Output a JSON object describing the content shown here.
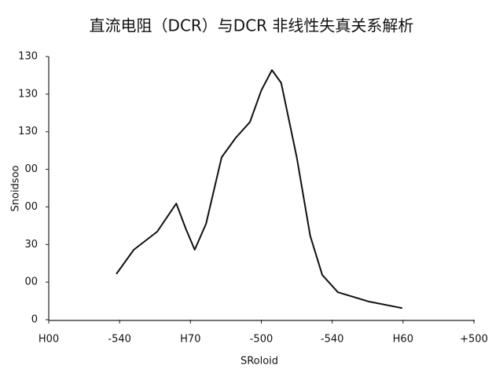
{
  "chart_data": {
    "type": "line",
    "title": "直流电阻（DCR）与DCR  非线性失真关系解析",
    "x_label": "SRoloid",
    "y_label": "Snoidsoo",
    "xlim": [
      0,
      6
    ],
    "ylim": [
      0,
      7
    ],
    "xticks": [
      {
        "value": 0,
        "label": "H00"
      },
      {
        "value": 1,
        "label": "-540"
      },
      {
        "value": 2,
        "label": "H70"
      },
      {
        "value": 3,
        "label": "-500"
      },
      {
        "value": 4,
        "label": "-540"
      },
      {
        "value": 5,
        "label": "H60"
      },
      {
        "value": 6,
        "label": "+500"
      }
    ],
    "yticks": [
      {
        "value": 0,
        "label": "0"
      },
      {
        "value": 1,
        "label": "00"
      },
      {
        "value": 2,
        "label": "30"
      },
      {
        "value": 3,
        "label": "00"
      },
      {
        "value": 4,
        "label": "00"
      },
      {
        "value": 5,
        "label": "130"
      },
      {
        "value": 6,
        "label": "130"
      },
      {
        "value": 7,
        "label": "130"
      }
    ],
    "grid": false,
    "series": [
      {
        "color": "#111111",
        "x": [
          0.96,
          1.2,
          1.53,
          1.8,
          1.93,
          2.06,
          2.22,
          2.44,
          2.64,
          2.84,
          3.0,
          3.15,
          3.28,
          3.5,
          3.69,
          3.86,
          4.08,
          4.52,
          4.98
        ],
        "values": [
          1.23,
          1.86,
          2.34,
          3.09,
          2.44,
          1.86,
          2.55,
          4.32,
          4.84,
          5.26,
          6.1,
          6.64,
          6.3,
          4.32,
          2.23,
          1.19,
          0.73,
          0.48,
          0.31
        ]
      }
    ]
  }
}
